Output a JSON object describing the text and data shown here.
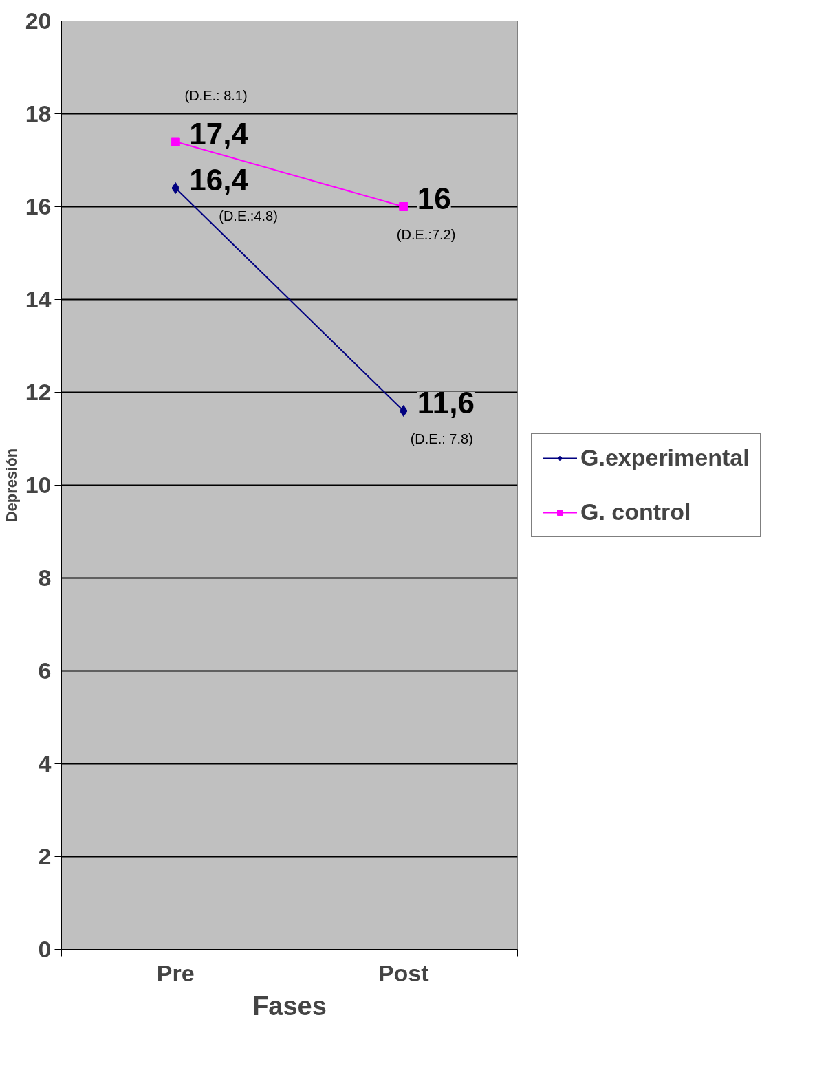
{
  "chart_data": {
    "type": "line",
    "xlabel": "Fases",
    "ylabel": "Depresión",
    "categories": [
      "Pre",
      "Post"
    ],
    "series": [
      {
        "name": "G.experimental",
        "color": "#000080",
        "marker": "diamond",
        "values": [
          16.4,
          11.6
        ],
        "value_labels": [
          "16,4",
          "11,6"
        ]
      },
      {
        "name": "G. control",
        "color": "#ff00ff",
        "marker": "square",
        "values": [
          17.4,
          16
        ],
        "value_labels": [
          "17,4",
          "16"
        ]
      }
    ],
    "annotations": [
      "(D.E.:  8.1)",
      "(D.E.:4.8)",
      "(D.E.:7.2)",
      "(D.E.: 7.8)"
    ],
    "ylim": [
      0,
      20
    ],
    "yticks": [
      0,
      2,
      4,
      6,
      8,
      10,
      12,
      14,
      16,
      18,
      20
    ],
    "grid": "y",
    "legend": "right",
    "line_style": "solid"
  }
}
